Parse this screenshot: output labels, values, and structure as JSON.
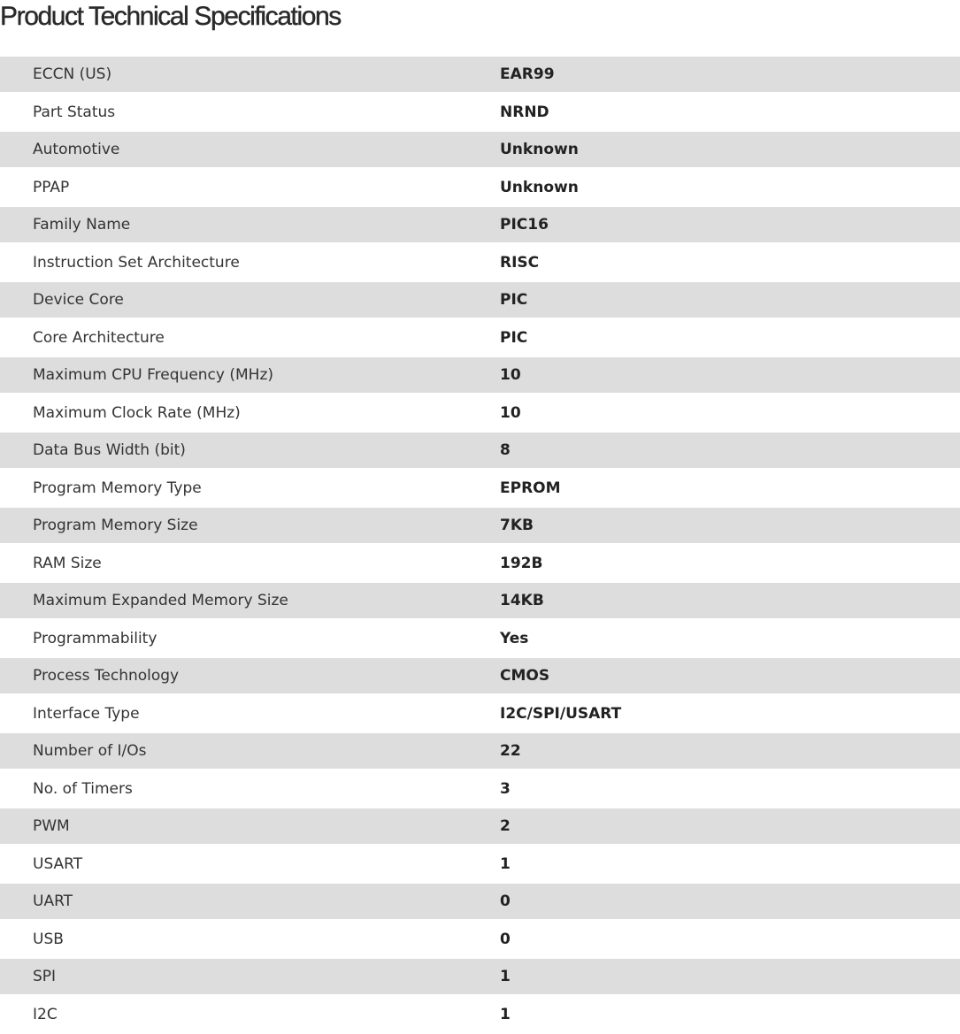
{
  "title": "Product Technical Specifications",
  "specs": [
    {
      "label": "ECCN (US)",
      "value": "EAR99"
    },
    {
      "label": "Part Status",
      "value": "NRND"
    },
    {
      "label": "Automotive",
      "value": "Unknown"
    },
    {
      "label": "PPAP",
      "value": "Unknown"
    },
    {
      "label": "Family Name",
      "value": "PIC16"
    },
    {
      "label": "Instruction Set Architecture",
      "value": "RISC"
    },
    {
      "label": "Device Core",
      "value": "PIC"
    },
    {
      "label": "Core Architecture",
      "value": "PIC"
    },
    {
      "label": "Maximum CPU Frequency (MHz)",
      "value": "10"
    },
    {
      "label": "Maximum Clock Rate (MHz)",
      "value": "10"
    },
    {
      "label": "Data Bus Width (bit)",
      "value": "8"
    },
    {
      "label": "Program Memory Type",
      "value": "EPROM"
    },
    {
      "label": "Program Memory Size",
      "value": "7KB"
    },
    {
      "label": "RAM Size",
      "value": "192B"
    },
    {
      "label": "Maximum Expanded Memory Size",
      "value": "14KB"
    },
    {
      "label": "Programmability",
      "value": "Yes"
    },
    {
      "label": "Process Technology",
      "value": "CMOS"
    },
    {
      "label": "Interface Type",
      "value": "I2C/SPI/USART"
    },
    {
      "label": "Number of I/Os",
      "value": "22"
    },
    {
      "label": "No. of Timers",
      "value": "3"
    },
    {
      "label": "PWM",
      "value": "2"
    },
    {
      "label": "USART",
      "value": "1"
    },
    {
      "label": "UART",
      "value": "0"
    },
    {
      "label": "USB",
      "value": "0"
    },
    {
      "label": "SPI",
      "value": "1"
    },
    {
      "label": "I2C",
      "value": "1"
    }
  ]
}
